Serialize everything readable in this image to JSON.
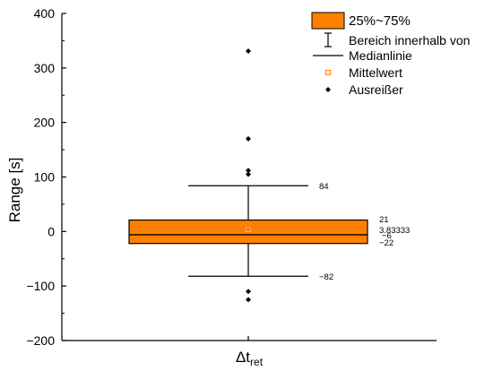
{
  "chart_data": {
    "type": "box",
    "ylabel": "Range [s]",
    "ylim": [
      -200,
      400
    ],
    "yticks": [
      -200,
      -100,
      0,
      100,
      200,
      300,
      400
    ],
    "categories": [
      "Δt_ret"
    ],
    "category_label": {
      "main": "Δt",
      "sub": "ret"
    },
    "box": {
      "q1": -22,
      "q3": 21,
      "median": -6,
      "mean": 3.83333,
      "whisker_low": -82,
      "whisker_high": 84,
      "outliers": [
        331,
        170,
        112,
        105,
        -110,
        -125
      ]
    },
    "annotations": {
      "whisker_high": "84",
      "q3": "21",
      "mean": "3.83333",
      "median": "-6",
      "q1": "-22",
      "whisker_low": "-82"
    },
    "legend": [
      {
        "key": "box",
        "label": "25%~75%"
      },
      {
        "key": "whisker",
        "label": "Bereich innerhalb von"
      },
      {
        "key": "median",
        "label": "Medianlinie"
      },
      {
        "key": "mean",
        "label": "Mittelwert"
      },
      {
        "key": "outlier",
        "label": "Ausreißer"
      }
    ],
    "legend_position": "top-right",
    "grid": false,
    "colors": {
      "box_fill": "#ff8000",
      "box_stroke": "#000000",
      "mean_marker": "#ff8000",
      "axis": "#000000"
    }
  }
}
